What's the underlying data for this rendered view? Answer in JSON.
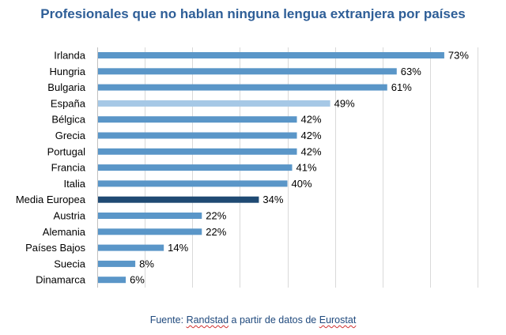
{
  "chart_data": {
    "type": "bar",
    "orientation": "horizontal",
    "title": "Profesionales que no hablan ninguna lengua extranjera por países",
    "categories": [
      "Irlanda",
      "Hungria",
      "Bulgaria",
      "España",
      "Bélgica",
      "Grecia",
      "Portugal",
      "Francia",
      "Italia",
      "Media Europea",
      "Austria",
      "Alemania",
      "Países Bajos",
      "Suecia",
      "Dinamarca"
    ],
    "values": [
      73,
      63,
      61,
      49,
      42,
      42,
      42,
      41,
      40,
      34,
      22,
      22,
      14,
      8,
      6
    ],
    "value_suffix": "%",
    "xlim": [
      0,
      80
    ],
    "grid": true,
    "legend": "none",
    "xlabel": "",
    "ylabel": "",
    "colors": {
      "default": "#5a96c8",
      "España": "#a6c8e6",
      "Media Europea": "#1f4a73"
    },
    "grid_color": "#d9d9d9",
    "axis_color": "#c0c0c0"
  },
  "footer": {
    "prefix": "Fuente: ",
    "source_name": "Randstad",
    "middle": " a partir de datos de ",
    "data_name": "Eurostat"
  }
}
